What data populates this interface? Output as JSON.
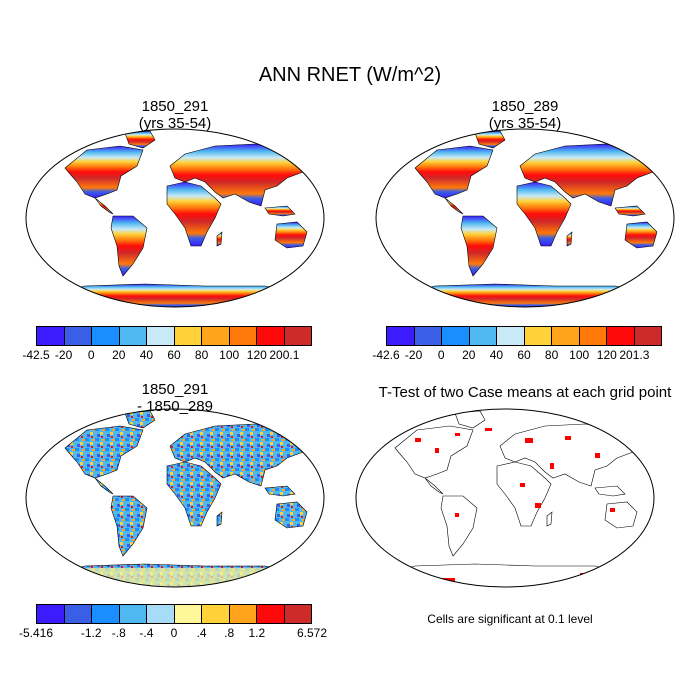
{
  "main_title": "ANN RNET (W/m^2)",
  "panels": [
    {
      "title_line1": "1850_291",
      "title_line2": "(yrs 35-54)"
    },
    {
      "title_line1": "1850_289",
      "title_line2": "(yrs 35-54)"
    },
    {
      "title_line1": "1850_291",
      "title_line2": "- 1850_289"
    },
    {
      "title_line1": "T-Test of two Case means at each grid point",
      "title_line2": ""
    }
  ],
  "colorbars": [
    {
      "colors": [
        "#3c1cff",
        "#3a5fe6",
        "#1a8dff",
        "#4fb8f0",
        "#c9e9f7",
        "#ffd23a",
        "#ffa41b",
        "#ff7a0a",
        "#ff0a0a",
        "#cf2a2a"
      ],
      "labels": [
        "-42.5",
        "-20",
        "0",
        "20",
        "40",
        "60",
        "80",
        "100",
        "120",
        "200.1"
      ]
    },
    {
      "colors": [
        "#3c1cff",
        "#3a5fe6",
        "#1a8dff",
        "#4fb8f0",
        "#c9e9f7",
        "#ffd23a",
        "#ffa41b",
        "#ff7a0a",
        "#ff0a0a",
        "#cf2a2a"
      ],
      "labels": [
        "-42.6",
        "-20",
        "0",
        "20",
        "40",
        "60",
        "80",
        "100",
        "120",
        "201.3"
      ]
    },
    {
      "colors": [
        "#3c1cff",
        "#3a5fe6",
        "#1a8dff",
        "#4fb8f0",
        "#a6dcf5",
        "#fff79a",
        "#ffd23a",
        "#ffa41b",
        "#ff0a0a",
        "#cf2a2a"
      ],
      "labels": [
        "-5.416",
        "",
        "-1.2",
        "-.8",
        "-.4",
        "0",
        ".4",
        ".8",
        "1.2",
        "",
        "6.572"
      ]
    }
  ],
  "significance_note": "Cells are significant at 0.1 level"
}
